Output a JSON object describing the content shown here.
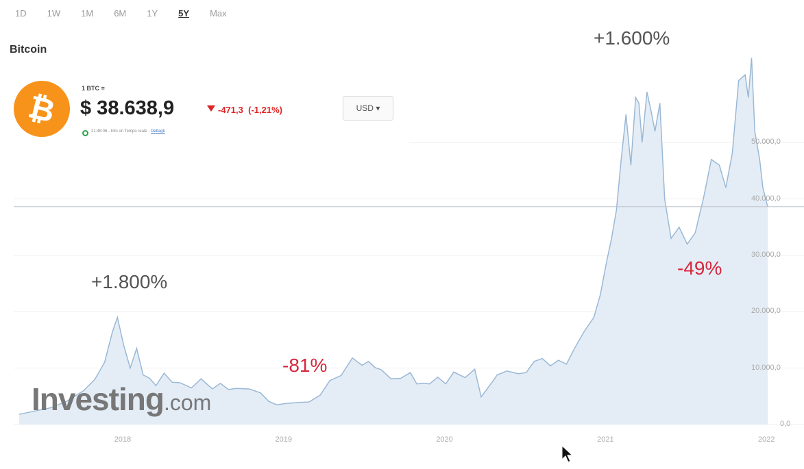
{
  "ranges": [
    {
      "label": "1D",
      "active": false
    },
    {
      "label": "1W",
      "active": false
    },
    {
      "label": "1M",
      "active": false
    },
    {
      "label": "6M",
      "active": false
    },
    {
      "label": "1Y",
      "active": false
    },
    {
      "label": "5Y",
      "active": true
    },
    {
      "label": "Max",
      "active": false
    }
  ],
  "asset_title": "Bitcoin",
  "quote": {
    "pair": "1 BTC =",
    "price": "$ 38.638,9",
    "change": "-471,3",
    "change_pct": "(-1,21%)",
    "currency": "USD",
    "currency_caret": "▾",
    "logo_symbol": "₿",
    "status_text": "21:48:06 - Info on Tempo reale ·",
    "status_link": "Dettagli",
    "change_color": "#e02424",
    "logo_color": "#f7931a"
  },
  "annotations": {
    "peak_2017": "+1.800%",
    "drop_2018": "-81%",
    "peak_2021": "+1.600%",
    "drop_2021": "-49%"
  },
  "watermark": {
    "brand": "Investing",
    "domain": ".com"
  },
  "chart_data": {
    "type": "area",
    "series": [
      {
        "x": [
          2017.35,
          2017.45,
          2017.55,
          2017.65,
          2017.75,
          2017.82,
          2017.88,
          2017.93,
          2017.96,
          2018.0,
          2018.04,
          2018.08,
          2018.12,
          2018.16,
          2018.2,
          2018.25,
          2018.3,
          2018.35,
          2018.42,
          2018.48,
          2018.55,
          2018.6,
          2018.65,
          2018.7,
          2018.78,
          2018.85,
          2018.9,
          2018.95,
          2019.0,
          2019.08,
          2019.15,
          2019.22,
          2019.28,
          2019.35,
          2019.42,
          2019.48,
          2019.52,
          2019.56,
          2019.6,
          2019.66,
          2019.72,
          2019.78,
          2019.82,
          2019.86,
          2019.9,
          2019.95,
          2020.0,
          2020.05,
          2020.12,
          2020.18,
          2020.22,
          2020.27,
          2020.32,
          2020.38,
          2020.45,
          2020.5,
          2020.55,
          2020.6,
          2020.65,
          2020.7,
          2020.75,
          2020.8,
          2020.86,
          2020.92,
          2020.96,
          2021.0,
          2021.03,
          2021.06,
          2021.09,
          2021.12,
          2021.15,
          2021.18,
          2021.2,
          2021.22,
          2021.25,
          2021.28,
          2021.3,
          2021.33,
          2021.36,
          2021.4,
          2021.45,
          2021.5,
          2021.55,
          2021.6,
          2021.65,
          2021.7,
          2021.74,
          2021.78,
          2021.82,
          2021.86,
          2021.88,
          2021.9,
          2021.92,
          2021.95,
          2021.97,
          2022.0
        ],
        "values": [
          1800,
          2400,
          3000,
          4200,
          6000,
          8000,
          11000,
          16500,
          19000,
          14000,
          10000,
          13500,
          8800,
          8200,
          6900,
          9100,
          7500,
          7400,
          6500,
          8100,
          6300,
          7300,
          6200,
          6400,
          6300,
          5600,
          4100,
          3500,
          3700,
          3900,
          4000,
          5200,
          7800,
          8700,
          11800,
          10500,
          11200,
          10100,
          9700,
          8100,
          8200,
          9200,
          7200,
          7300,
          7200,
          8400,
          7200,
          9300,
          8300,
          9800,
          4900,
          6800,
          8800,
          9500,
          9000,
          9200,
          11200,
          11700,
          10400,
          11400,
          10700,
          13500,
          16500,
          19000,
          23000,
          29000,
          33000,
          38000,
          47000,
          55000,
          46000,
          58000,
          57000,
          50000,
          59000,
          55000,
          52000,
          57000,
          40000,
          33000,
          35000,
          32000,
          34000,
          40000,
          47000,
          46000,
          42000,
          48000,
          61000,
          62000,
          58000,
          65000,
          52000,
          47000,
          42000,
          38600
        ]
      }
    ],
    "xlabels": [
      "2018",
      "2019",
      "2020",
      "2021",
      "2022"
    ],
    "yticks": [
      {
        "label": "0,0",
        "value": 0
      },
      {
        "label": "10.000,0",
        "value": 10000
      },
      {
        "label": "20.000,0",
        "value": 20000
      },
      {
        "label": "30.000,0",
        "value": 30000
      },
      {
        "label": "40.000,0",
        "value": 40000
      },
      {
        "label": "50.000,0",
        "value": 50000
      }
    ],
    "xlim": [
      2017.35,
      2022.0
    ],
    "ylim": [
      0,
      68000
    ],
    "grid": true,
    "line_color": "#9ab8d6",
    "fill_color": "#e4edf6",
    "current_price": 38638.9
  }
}
